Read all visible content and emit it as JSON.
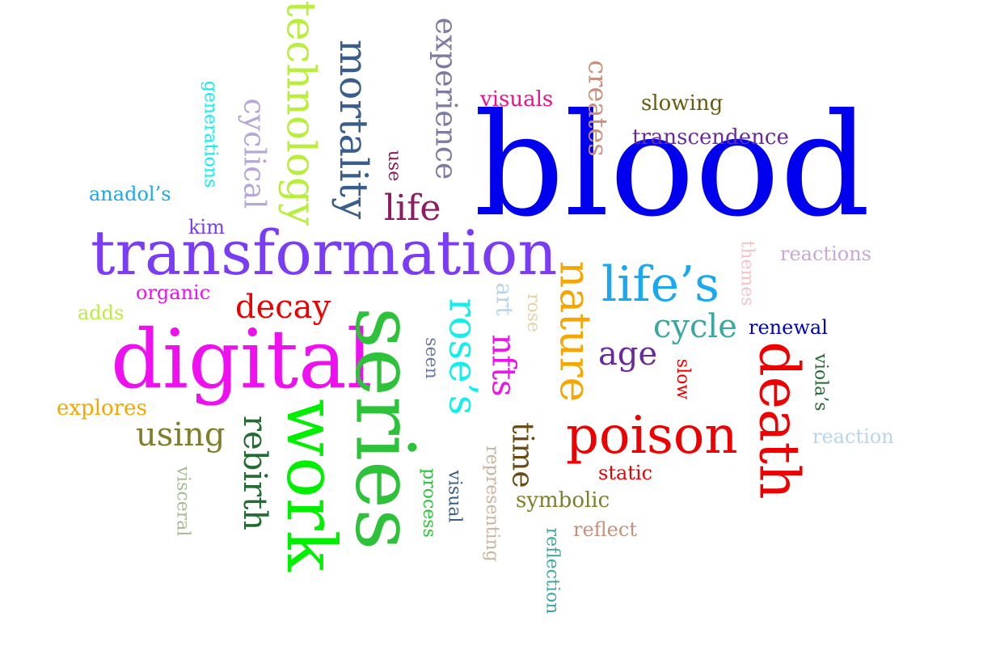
{
  "words": [
    {
      "id": "blood",
      "text": "blood",
      "color": "#0000ee",
      "orientation": "horizontal"
    },
    {
      "id": "transformation",
      "text": "transformation",
      "color": "#7a3cf5",
      "orientation": "horizontal"
    },
    {
      "id": "digital",
      "text": "digital",
      "color": "#ee10ee",
      "orientation": "horizontal"
    },
    {
      "id": "series",
      "text": "series",
      "color": "#2ec23a",
      "orientation": "vertical"
    },
    {
      "id": "work",
      "text": "work",
      "color": "#00ee00",
      "orientation": "vertical"
    },
    {
      "id": "poison",
      "text": "poison",
      "color": "#ee0000",
      "orientation": "horizontal"
    },
    {
      "id": "death",
      "text": "death",
      "color": "#ee0000",
      "orientation": "vertical"
    },
    {
      "id": "nature",
      "text": "nature",
      "color": "#f6a600",
      "orientation": "vertical"
    },
    {
      "id": "technology",
      "text": "technology",
      "color": "#b8ee3c",
      "orientation": "vertical"
    },
    {
      "id": "mortality",
      "text": "mortality",
      "color": "#3a5e8c",
      "orientation": "vertical"
    },
    {
      "id": "lifes",
      "text": "life’s",
      "color": "#1aa9ee",
      "orientation": "horizontal"
    },
    {
      "id": "roses",
      "text": "rose’s",
      "color": "#10eeee",
      "orientation": "vertical"
    },
    {
      "id": "rebirth",
      "text": "rebirth",
      "color": "#226b32",
      "orientation": "vertical"
    },
    {
      "id": "experience",
      "text": "experience",
      "color": "#7e7aa4",
      "orientation": "vertical"
    },
    {
      "id": "cyclical",
      "text": "cyclical",
      "color": "#b9a6d8",
      "orientation": "vertical"
    },
    {
      "id": "life",
      "text": "life",
      "color": "#8e1a62",
      "orientation": "horizontal"
    },
    {
      "id": "decay",
      "text": "decay",
      "color": "#ee0000",
      "orientation": "horizontal"
    },
    {
      "id": "using",
      "text": "using",
      "color": "#7f7f2a",
      "orientation": "horizontal"
    },
    {
      "id": "nfts",
      "text": "nfts",
      "color": "#ee10ee",
      "orientation": "vertical"
    },
    {
      "id": "time",
      "text": "time",
      "color": "#6a4a10",
      "orientation": "vertical"
    },
    {
      "id": "cycle",
      "text": "cycle",
      "color": "#3aa8a0",
      "orientation": "horizontal"
    },
    {
      "id": "age",
      "text": "age",
      "color": "#6a2a9a",
      "orientation": "horizontal"
    },
    {
      "id": "creates",
      "text": "creates",
      "color": "#c8907a",
      "orientation": "vertical"
    },
    {
      "id": "transcendence",
      "text": "transcendence",
      "color": "#6a2a9a",
      "orientation": "horizontal"
    },
    {
      "id": "slowing",
      "text": "slowing",
      "color": "#6a5a10",
      "orientation": "horizontal"
    },
    {
      "id": "visuals",
      "text": "visuals",
      "color": "#ee1090",
      "orientation": "horizontal"
    },
    {
      "id": "generations",
      "text": "generations",
      "color": "#10eeee",
      "orientation": "vertical"
    },
    {
      "id": "anadols",
      "text": "anadol’s",
      "color": "#1aa9ee",
      "orientation": "horizontal"
    },
    {
      "id": "kim",
      "text": "kim",
      "color": "#7a3cf5",
      "orientation": "horizontal"
    },
    {
      "id": "organic",
      "text": "organic",
      "color": "#ee10ee",
      "orientation": "horizontal"
    },
    {
      "id": "adds",
      "text": "adds",
      "color": "#b8ee3c",
      "orientation": "horizontal"
    },
    {
      "id": "explores",
      "text": "explores",
      "color": "#f6a600",
      "orientation": "horizontal"
    },
    {
      "id": "visceral",
      "text": "visceral",
      "color": "#a4bc94",
      "orientation": "vertical"
    },
    {
      "id": "use",
      "text": "use",
      "color": "#8e1a62",
      "orientation": "vertical"
    },
    {
      "id": "art",
      "text": "art",
      "color": "#b9d4ec",
      "orientation": "vertical"
    },
    {
      "id": "rose",
      "text": "rose",
      "color": "#e6d2a2",
      "orientation": "vertical"
    },
    {
      "id": "seen",
      "text": "seen",
      "color": "#6a7aa4",
      "orientation": "vertical"
    },
    {
      "id": "process",
      "text": "process",
      "color": "#2ec23a",
      "orientation": "vertical"
    },
    {
      "id": "visual",
      "text": "visual",
      "color": "#3a5e8c",
      "orientation": "vertical"
    },
    {
      "id": "representing",
      "text": "representing",
      "color": "#c8b4a0",
      "orientation": "vertical"
    },
    {
      "id": "symbolic",
      "text": "symbolic",
      "color": "#7f7f2a",
      "orientation": "horizontal"
    },
    {
      "id": "reflection",
      "text": "reflection",
      "color": "#3aa8a0",
      "orientation": "vertical"
    },
    {
      "id": "reflect",
      "text": "reflect",
      "color": "#c8907a",
      "orientation": "horizontal"
    },
    {
      "id": "static",
      "text": "static",
      "color": "#ee0000",
      "orientation": "horizontal"
    },
    {
      "id": "slow",
      "text": "slow",
      "color": "#ee0000",
      "orientation": "vertical"
    },
    {
      "id": "themes",
      "text": "themes",
      "color": "#f6c2c8",
      "orientation": "vertical"
    },
    {
      "id": "reactions",
      "text": "reactions",
      "color": "#c8a8d8",
      "orientation": "horizontal"
    },
    {
      "id": "renewal",
      "text": "renewal",
      "color": "#0000cc",
      "orientation": "horizontal"
    },
    {
      "id": "violas",
      "text": "viola’s",
      "color": "#226b32",
      "orientation": "vertical"
    },
    {
      "id": "reaction",
      "text": "reaction",
      "color": "#b9d4ec",
      "orientation": "horizontal"
    }
  ]
}
